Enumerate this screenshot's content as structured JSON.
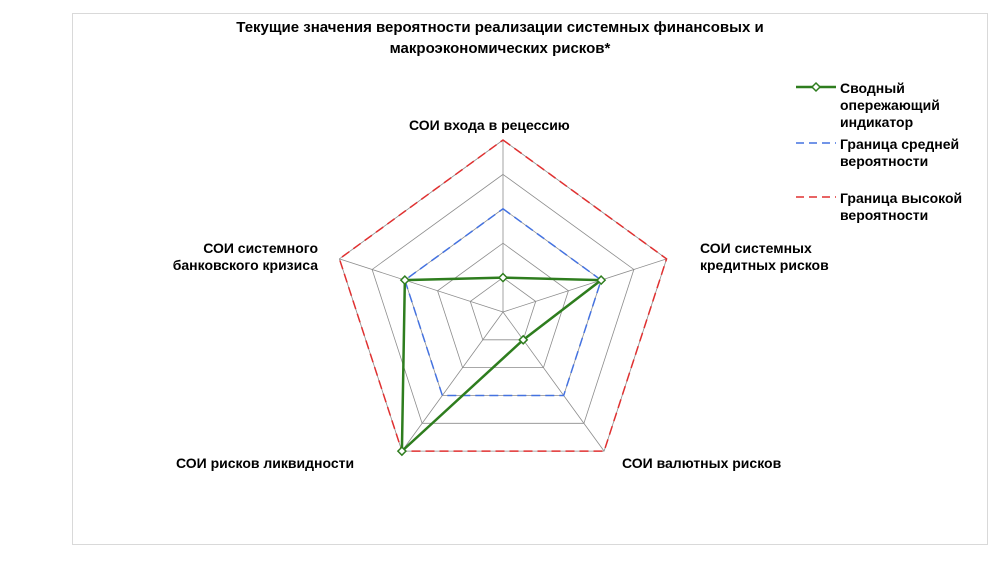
{
  "chart_data": {
    "type": "radar",
    "title": "Текущие значения вероятности реализации системных финансовых и макроэкономических рисков*",
    "axes": [
      "СОИ входа в рецессию",
      "СОИ системных кредитных рисков",
      "СОИ валютных рисков",
      "СОИ рисков ликвидности",
      "СОИ системного банковского кризиса"
    ],
    "axes_display": [
      "СОИ входа в рецессию",
      "СОИ системных\nкредитных рисков",
      "СОИ валютных рисков",
      "СОИ рисков ликвидности",
      "СОИ системного\nбанковского кризиса"
    ],
    "rmax": 1,
    "gridlines": 5,
    "series": [
      {
        "name": "Сводный опережающий индикатор",
        "values": [
          0.2,
          0.6,
          0.2,
          1.0,
          0.6
        ],
        "color": "#2e7d1e",
        "style": "solid",
        "marker": "diamond"
      },
      {
        "name": "Граница средней вероятности",
        "values": [
          0.6,
          0.6,
          0.6,
          0.6,
          0.6
        ],
        "color": "#4472e0",
        "style": "dashed"
      },
      {
        "name": "Граница высокой вероятности",
        "values": [
          1.0,
          1.0,
          1.0,
          1.0,
          1.0
        ],
        "color": "#e03030",
        "style": "dashed"
      }
    ],
    "legend_position": "right"
  },
  "legend": {
    "items": [
      {
        "label": "Сводный\nопережающий\nиндикатор"
      },
      {
        "label": "Граница средней\nвероятности"
      },
      {
        "label": "Граница высокой\nвероятности"
      }
    ]
  }
}
